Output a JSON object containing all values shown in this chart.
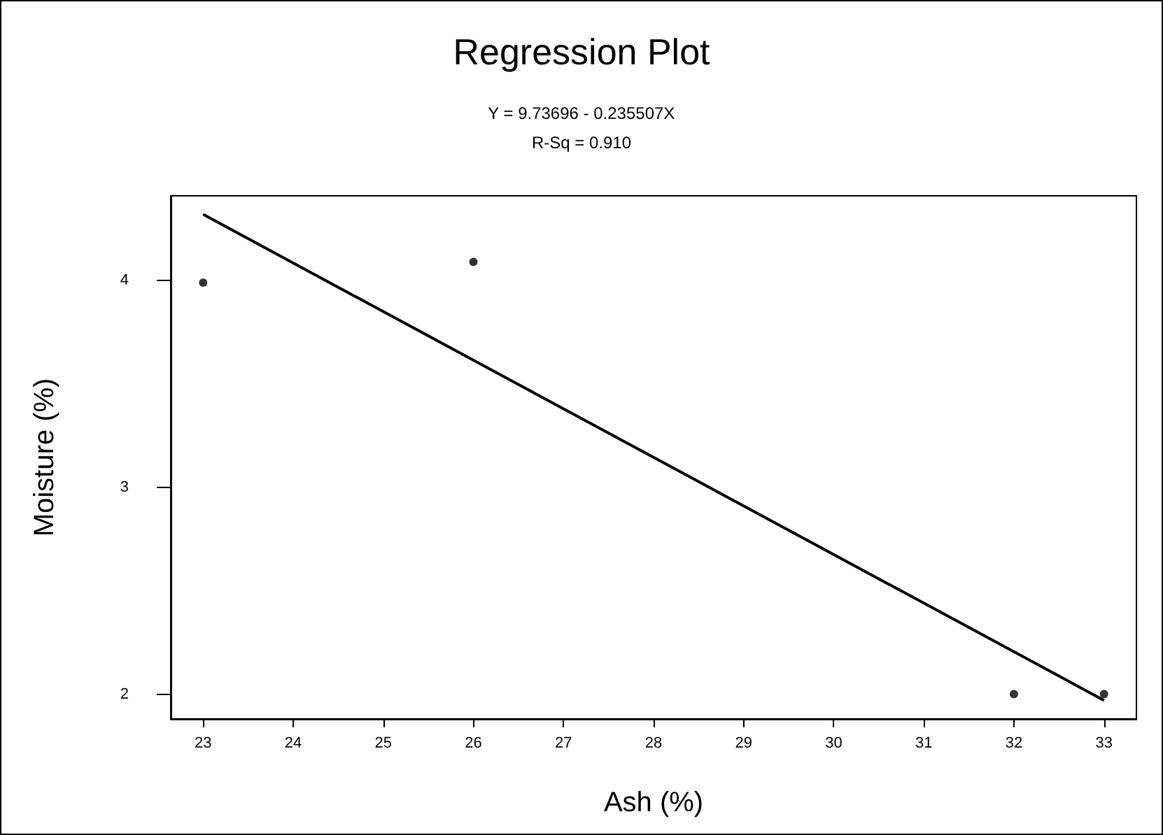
{
  "chart_data": {
    "type": "scatter",
    "title": "Regression Plot",
    "xlabel": "Ash (%)",
    "ylabel": "Moisture (%)",
    "annotations": [
      "Y = 9.73696 - 0.235507X",
      "R-Sq = 0.910"
    ],
    "xlim": [
      22.64,
      33.36
    ],
    "xticks": [
      23,
      24,
      25,
      26,
      27,
      28,
      29,
      30,
      31,
      32,
      33
    ],
    "ylim": [
      1.88,
      4.41
    ],
    "yticks": [
      2,
      3,
      4
    ],
    "grid": false,
    "marker": "circle",
    "series": [
      {
        "color": "#000000",
        "x": [
          23,
          26,
          32,
          33
        ],
        "values": [
          3.99,
          4.09,
          2.0,
          2.0
        ]
      },
      {
        "type": "line",
        "color": "#000000",
        "line_style": "solid",
        "marker": "none",
        "x": [
          23,
          33
        ],
        "values": [
          4.32,
          1.97
        ]
      }
    ]
  }
}
